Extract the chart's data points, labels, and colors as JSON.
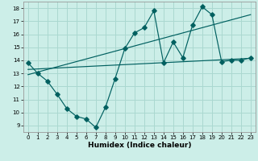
{
  "xlabel": "Humidex (Indice chaleur)",
  "bg_color": "#cceee8",
  "grid_color": "#aad8d0",
  "line_color": "#006060",
  "xlim": [
    -0.5,
    23.5
  ],
  "ylim": [
    8.5,
    18.5
  ],
  "xticks": [
    0,
    1,
    2,
    3,
    4,
    5,
    6,
    7,
    8,
    9,
    10,
    11,
    12,
    13,
    14,
    15,
    16,
    17,
    18,
    19,
    20,
    21,
    22,
    23
  ],
  "yticks": [
    9,
    10,
    11,
    12,
    13,
    14,
    15,
    16,
    17,
    18
  ],
  "line1_x": [
    0,
    1,
    2,
    3,
    4,
    5,
    6,
    7,
    8,
    9,
    10,
    11,
    12,
    13,
    14,
    15,
    16,
    17,
    18,
    19,
    20,
    21,
    22,
    23
  ],
  "line1_y": [
    13.8,
    13.0,
    12.4,
    11.4,
    10.3,
    9.7,
    9.5,
    8.85,
    10.4,
    12.6,
    14.9,
    16.1,
    16.5,
    17.8,
    13.8,
    15.4,
    14.2,
    16.7,
    18.1,
    17.5,
    13.9,
    14.0,
    14.0,
    14.2
  ],
  "line2_x": [
    0,
    23
  ],
  "line2_y": [
    12.9,
    17.5
  ],
  "line3_x": [
    0,
    23
  ],
  "line3_y": [
    13.3,
    14.15
  ]
}
